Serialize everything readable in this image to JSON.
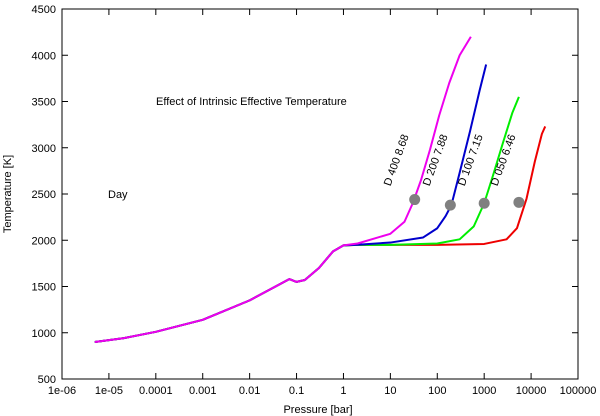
{
  "chart_data": {
    "type": "line",
    "title": "Effect of Intrinsic Effective Temperature",
    "subtitle_label": "Day",
    "xlabel": "Pressure [bar]",
    "ylabel": "Temperature [K]",
    "xscale": "log",
    "xlim": [
      1e-06,
      100000
    ],
    "ylim": [
      500,
      4500
    ],
    "x_ticks": [
      1e-06,
      1e-05,
      0.0001,
      0.001,
      0.01,
      0.1,
      1,
      10,
      100,
      1000,
      10000,
      100000
    ],
    "x_tick_labels": [
      "1e-06",
      "1e-05",
      "0.0001",
      "0.001",
      "0.01",
      "0.1",
      "1",
      "10",
      "100",
      "1000",
      "10000",
      "100000"
    ],
    "y_ticks": [
      500,
      1000,
      1500,
      2000,
      2500,
      3000,
      3500,
      4000,
      4500
    ],
    "y_tick_labels": [
      "500",
      "1000",
      "1500",
      "2000",
      "2500",
      "3000",
      "3500",
      "4000",
      "4500"
    ],
    "series": [
      {
        "name": "D 050  6.46",
        "color": "#ee0000",
        "x": [
          5e-06,
          2e-05,
          0.0001,
          0.001,
          0.01,
          0.03,
          0.07,
          0.1,
          0.15,
          0.3,
          0.6,
          1,
          2,
          10,
          100,
          1000,
          3000,
          5000,
          8000,
          12000,
          17000,
          20000
        ],
        "y": [
          900,
          940,
          1010,
          1140,
          1350,
          1480,
          1580,
          1550,
          1570,
          1700,
          1880,
          1945,
          1950,
          1950,
          1950,
          1960,
          2010,
          2130,
          2450,
          2850,
          3150,
          3230
        ],
        "marker": {
          "x": 5500,
          "y": 2410
        }
      },
      {
        "name": "D 100  7.15",
        "color": "#00ee00",
        "x": [
          5e-06,
          2e-05,
          0.0001,
          0.001,
          0.01,
          0.03,
          0.07,
          0.1,
          0.15,
          0.3,
          0.6,
          1,
          2,
          10,
          100,
          300,
          600,
          1000,
          1500,
          2500,
          4000,
          5500
        ],
        "y": [
          900,
          940,
          1010,
          1140,
          1350,
          1480,
          1580,
          1550,
          1570,
          1700,
          1880,
          1945,
          1950,
          1950,
          1965,
          2010,
          2150,
          2400,
          2680,
          3050,
          3380,
          3550
        ],
        "marker": {
          "x": 1000,
          "y": 2400
        }
      },
      {
        "name": "D 200  7.88",
        "color": "#0000cc",
        "x": [
          5e-06,
          2e-05,
          0.0001,
          0.001,
          0.01,
          0.03,
          0.07,
          0.1,
          0.15,
          0.3,
          0.6,
          1,
          2,
          10,
          50,
          100,
          150,
          200,
          300,
          500,
          800,
          1100
        ],
        "y": [
          900,
          940,
          1010,
          1140,
          1350,
          1480,
          1580,
          1550,
          1570,
          1700,
          1880,
          1945,
          1952,
          1975,
          2030,
          2130,
          2260,
          2380,
          2730,
          3180,
          3620,
          3900
        ],
        "marker": {
          "x": 190,
          "y": 2380
        }
      },
      {
        "name": "D 400  8.68",
        "color": "#ee00ee",
        "x": [
          5e-06,
          2e-05,
          0.0001,
          0.001,
          0.01,
          0.03,
          0.07,
          0.1,
          0.15,
          0.3,
          0.6,
          1,
          2,
          10,
          20,
          30,
          45,
          70,
          110,
          180,
          300,
          520
        ],
        "y": [
          900,
          940,
          1010,
          1140,
          1350,
          1480,
          1580,
          1550,
          1570,
          1700,
          1880,
          1945,
          1965,
          2070,
          2200,
          2400,
          2650,
          2980,
          3350,
          3700,
          4000,
          4200
        ],
        "marker": {
          "x": 33,
          "y": 2440
        }
      }
    ],
    "annotations": [
      {
        "text": "D 400  8.68",
        "x": 10,
        "y": 2580
      },
      {
        "text": "D 200  7.88",
        "x": 68,
        "y": 2580
      },
      {
        "text": "D 100  7.15",
        "x": 380,
        "y": 2580
      },
      {
        "text": "D 050  6.46",
        "x": 1900,
        "y": 2580
      }
    ],
    "grid": false,
    "colors": {
      "marker": "#808080",
      "axis": "#000000"
    }
  }
}
